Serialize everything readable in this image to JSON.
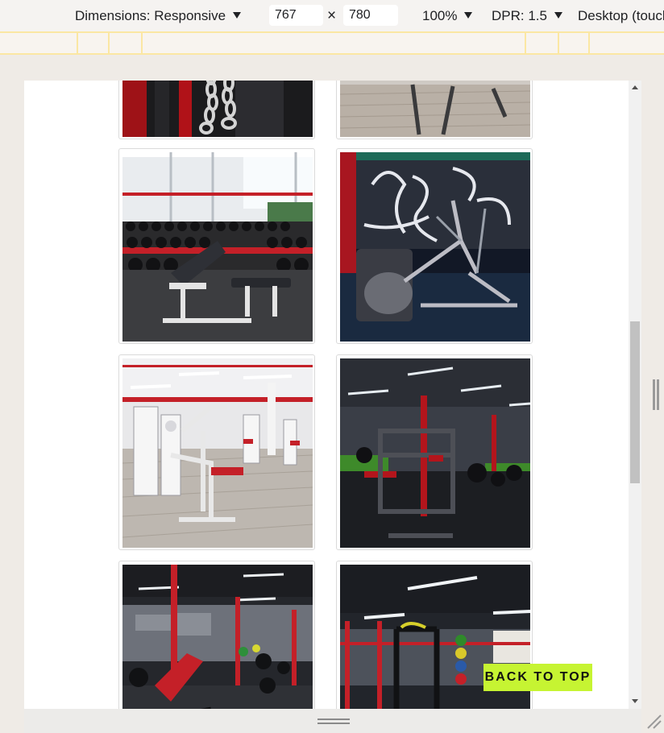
{
  "devtools": {
    "dimensions_label": "Dimensions: Responsive",
    "width_value": "767",
    "height_value": "780",
    "times_symbol": "×",
    "zoom_label": "100%",
    "dpr_label": "DPR: 1.5",
    "device_mode_label": "Desktop (touch)"
  },
  "gallery": {
    "photos": [
      {
        "name": "strength-rack-chains"
      },
      {
        "name": "treadmill-wood-floor"
      },
      {
        "name": "dumbbell-rack-bench"
      },
      {
        "name": "elliptical-graffiti-wall"
      },
      {
        "name": "white-machines-wood-floor"
      },
      {
        "name": "dark-gym-red-rack"
      },
      {
        "name": "staff-room-therapy-room"
      },
      {
        "name": "cable-station-plates"
      }
    ]
  },
  "back_to_top": {
    "label": "BACK TO TOP",
    "color": "#c6f432"
  }
}
